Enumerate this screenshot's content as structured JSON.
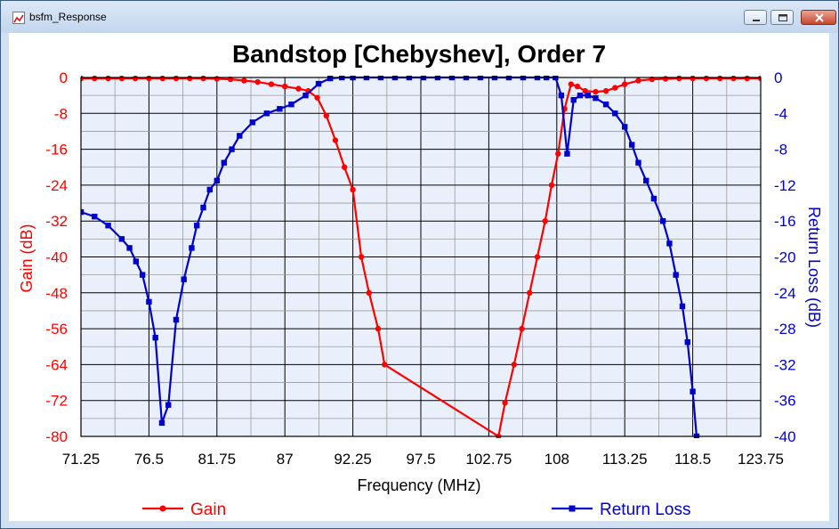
{
  "window": {
    "title": "bsfm_Response"
  },
  "colors": {
    "gain": "#ff0000",
    "return_loss": "#0000cc",
    "plot_bg": "#eaf0fb"
  },
  "chart_data": {
    "type": "line",
    "title": "Bandstop [Chebyshev], Order 7",
    "xlabel": "Frequency (MHz)",
    "ylabel_left": "Gain (dB)",
    "ylabel_right": "Return Loss (dB)",
    "xlim": [
      71.25,
      123.75
    ],
    "ylim_left": [
      -80,
      0
    ],
    "ylim_right": [
      -40,
      0
    ],
    "x_ticks": [
      "71.25",
      "76.5",
      "81.75",
      "87",
      "92.25",
      "97.5",
      "102.75",
      "108",
      "113.25",
      "118.5",
      "123.75"
    ],
    "y_left_ticks": [
      "0",
      "-8",
      "-16",
      "-24",
      "-32",
      "-40",
      "-48",
      "-56",
      "-64",
      "-72",
      "-80"
    ],
    "y_right_ticks": [
      "0",
      "-4",
      "-8",
      "-12",
      "-16",
      "-20",
      "-24",
      "-28",
      "-32",
      "-36",
      "-40"
    ],
    "grid": true,
    "legend_position": "bottom",
    "series": [
      {
        "name": "Gain",
        "axis": "left",
        "color": "#ff0000",
        "marker": "circle",
        "x": [
          71.25,
          72.3,
          73.35,
          74.4,
          75.45,
          76.5,
          77.55,
          78.6,
          79.65,
          80.7,
          81.75,
          82.8,
          83.85,
          84.9,
          85.95,
          87,
          88.05,
          88.8,
          89.5,
          90.2,
          90.9,
          91.6,
          92.25,
          92.9,
          93.5,
          94.2,
          94.7,
          103.5,
          104.0,
          104.7,
          105.3,
          105.9,
          106.5,
          107.1,
          107.6,
          108.1,
          108.6,
          109.1,
          109.6,
          110.2,
          111.0,
          111.8,
          112.5,
          113.25,
          114.3,
          115.35,
          116.4,
          117.45,
          118.5,
          119.55,
          120.6,
          121.65,
          122.7,
          123.75
        ],
        "values": [
          -0.2,
          -0.2,
          -0.2,
          -0.2,
          -0.2,
          -0.2,
          -0.2,
          -0.2,
          -0.2,
          -0.2,
          -0.3,
          -0.4,
          -0.7,
          -1.0,
          -1.5,
          -2.0,
          -2.5,
          -3.0,
          -4.5,
          -8.5,
          -14,
          -20,
          -25,
          -40,
          -48,
          -56,
          -64,
          -80,
          -72.5,
          -64,
          -56,
          -48,
          -40,
          -32,
          -24,
          -17,
          -7,
          -1.5,
          -2.0,
          -3.0,
          -3.2,
          -3.0,
          -2.3,
          -1.5,
          -0.7,
          -0.4,
          -0.3,
          -0.2,
          -0.2,
          -0.2,
          -0.2,
          -0.2,
          -0.2,
          -0.2
        ]
      },
      {
        "name": "Return Loss",
        "axis": "right",
        "color": "#0000cc",
        "marker": "square",
        "x": [
          71.25,
          72.3,
          73.35,
          74.4,
          75.0,
          75.5,
          76.0,
          76.5,
          77.0,
          77.5,
          78.0,
          78.6,
          79.2,
          79.8,
          80.2,
          80.7,
          81.2,
          81.75,
          82.3,
          82.9,
          83.5,
          84.5,
          85.6,
          86.6,
          87.5,
          88.6,
          89.6,
          90.5,
          91.4,
          92.25,
          93.3,
          94.4,
          95.5,
          96.6,
          97.7,
          98.8,
          99.9,
          101.0,
          102.1,
          103.2,
          104.3,
          105.4,
          106.5,
          107.2,
          107.9,
          108.35,
          108.8,
          109.3,
          109.8,
          110.4,
          111.0,
          111.8,
          112.5,
          113.25,
          113.8,
          114.3,
          114.9,
          115.5,
          116.2,
          116.7,
          117.2,
          117.7,
          118.1,
          118.5,
          118.8
        ],
        "values": [
          -15.0,
          -15.5,
          -16.5,
          -18.0,
          -19.0,
          -20.5,
          -22.0,
          -25.0,
          -29.0,
          -38.5,
          -36.5,
          -27.0,
          -22.5,
          -19.0,
          -16.5,
          -14.5,
          -12.5,
          -11.5,
          -9.5,
          -8.0,
          -6.5,
          -5.0,
          -4.0,
          -3.5,
          -3.0,
          -2.0,
          -0.7,
          -0.1,
          0,
          0,
          0,
          0,
          0,
          0,
          0,
          0,
          0,
          0,
          0,
          0,
          0,
          0,
          0,
          0,
          0,
          -2.0,
          -8.5,
          -2.5,
          -2.0,
          -2.0,
          -2.3,
          -3.0,
          -4.0,
          -5.5,
          -7.5,
          -9.5,
          -11.5,
          -13.5,
          -16.0,
          -18.5,
          -22.0,
          -25.5,
          -29.5,
          -35.0,
          -40.0
        ]
      }
    ]
  }
}
